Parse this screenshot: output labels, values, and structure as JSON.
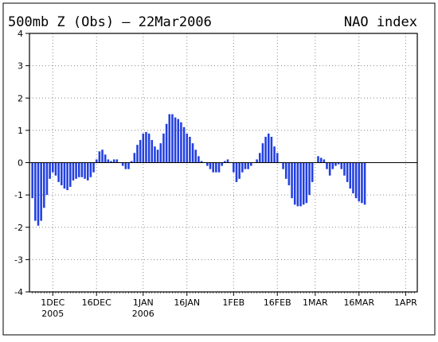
{
  "chart_data": {
    "type": "bar",
    "title": "500mb Z (Obs) — 22Mar2006",
    "subtitle": "NAO index",
    "ylim": [
      -4,
      4
    ],
    "y_ticks": [
      -4,
      -3,
      -2,
      -1,
      0,
      1,
      2,
      3,
      4
    ],
    "x_start_date": "2005-11-23",
    "x_end_date": "2006-04-05",
    "x_ticks": [
      {
        "date": "2005-12-01",
        "label": "1DEC",
        "year": "2005"
      },
      {
        "date": "2005-12-16",
        "label": "16DEC",
        "year": ""
      },
      {
        "date": "2006-01-01",
        "label": "1JAN",
        "year": "2006"
      },
      {
        "date": "2006-01-16",
        "label": "16JAN",
        "year": ""
      },
      {
        "date": "2006-02-01",
        "label": "1FEB",
        "year": ""
      },
      {
        "date": "2006-02-16",
        "label": "16FEB",
        "year": ""
      },
      {
        "date": "2006-03-01",
        "label": "1MAR",
        "year": ""
      },
      {
        "date": "2006-03-16",
        "label": "16MAR",
        "year": ""
      },
      {
        "date": "2006-04-01",
        "label": "1APR",
        "year": ""
      }
    ],
    "grid": true,
    "bar_color": "#2340e0",
    "series": [
      {
        "x_start": "2005-11-24",
        "values": [
          -1.1,
          -1.8,
          -1.95,
          -1.8,
          -1.4,
          -1.0,
          -0.5,
          -0.3,
          -0.4,
          -0.6,
          -0.7,
          -0.8,
          -0.85,
          -0.75,
          -0.55,
          -0.5,
          -0.45,
          -0.45,
          -0.5,
          -0.55,
          -0.45,
          -0.3,
          0.1,
          0.35,
          0.4,
          0.25,
          0.1,
          0.05,
          0.1,
          0.1,
          0.0,
          -0.1,
          -0.2,
          -0.2,
          0.05,
          0.3,
          0.55,
          0.7,
          0.9,
          0.95,
          0.9,
          0.7,
          0.5,
          0.4,
          0.6,
          0.9,
          1.2,
          1.5,
          1.5,
          1.4,
          1.35,
          1.25,
          1.1,
          0.9,
          0.8,
          0.6,
          0.4,
          0.2,
          0.05,
          0.0,
          -0.1,
          -0.2,
          -0.3,
          -0.3,
          -0.3,
          -0.1,
          0.05,
          0.1,
          0.0,
          -0.3,
          -0.6,
          -0.5,
          -0.3,
          -0.2,
          -0.2,
          -0.1,
          0.0,
          0.1,
          0.3,
          0.6,
          0.8,
          0.9,
          0.8,
          0.5,
          0.3,
          0.0,
          -0.2,
          -0.5,
          -0.7,
          -1.1,
          -1.3,
          -1.35,
          -1.35,
          -1.3,
          -1.25,
          -1.0,
          -0.6,
          0.0,
          0.2,
          0.15,
          0.1,
          -0.2,
          -0.4,
          -0.2,
          -0.1,
          -0.05,
          -0.2,
          -0.4,
          -0.6,
          -0.8,
          -0.95,
          -1.1,
          -1.2,
          -1.25,
          -1.3
        ]
      }
    ]
  }
}
